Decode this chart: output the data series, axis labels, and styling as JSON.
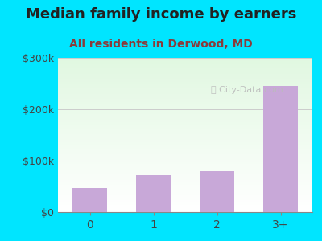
{
  "categories": [
    "0",
    "1",
    "2",
    "3+"
  ],
  "values": [
    47000,
    72000,
    80000,
    245000
  ],
  "bar_color": "#c8a8d8",
  "title": "Median family income by earners",
  "subtitle": "All residents in Derwood, MD",
  "title_fontsize": 13,
  "subtitle_fontsize": 10,
  "title_color": "#222222",
  "subtitle_color": "#8b3a3a",
  "ylim": [
    0,
    300000
  ],
  "yticks": [
    0,
    100000,
    200000,
    300000
  ],
  "ytick_labels": [
    "$0",
    "$100k",
    "$200k",
    "$300k"
  ],
  "background_outer": "#00e5ff",
  "grid_color": "#cccccc",
  "watermark": "City-Data.com"
}
